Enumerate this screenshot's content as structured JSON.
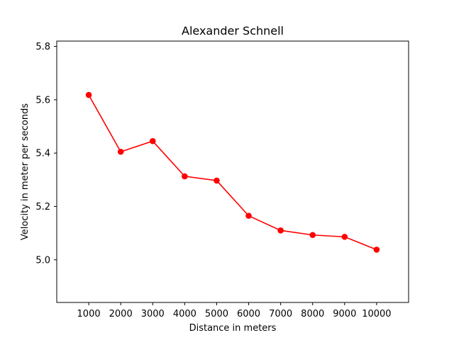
{
  "chart_data": {
    "type": "line",
    "title": "Alexander Schnell",
    "xlabel": "Distance in meters",
    "ylabel": "Velocity in meter per seconds",
    "x": [
      1000,
      2000,
      3000,
      4000,
      5000,
      6000,
      7000,
      8000,
      9000,
      10000
    ],
    "series": [
      {
        "values": [
          5.618,
          5.405,
          5.445,
          5.313,
          5.297,
          5.165,
          5.11,
          5.093,
          5.086,
          5.038
        ],
        "color": "#ff0000",
        "marker": "circle"
      }
    ],
    "xticks": [
      "1000",
      "2000",
      "3000",
      "4000",
      "5000",
      "6000",
      "7000",
      "8000",
      "9000",
      "10000"
    ],
    "yticks": [
      5.0,
      5.2,
      5.4,
      5.6,
      5.8
    ],
    "ytick_labels": [
      "5.0",
      "5.2",
      "5.4",
      "5.6",
      "5.8"
    ],
    "xlim": [
      0,
      11000
    ],
    "ylim": [
      4.84,
      5.82
    ],
    "grid": false,
    "legend": false
  }
}
